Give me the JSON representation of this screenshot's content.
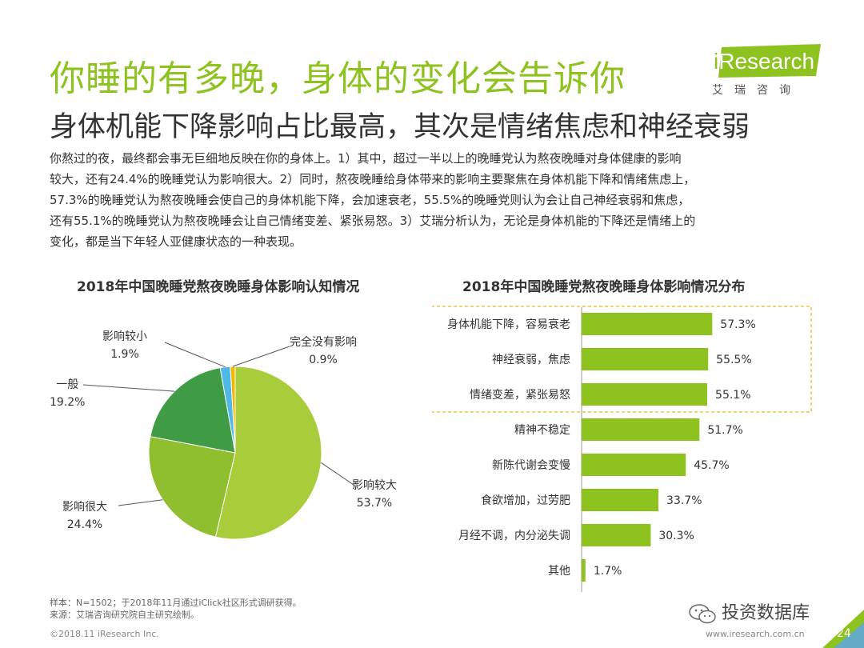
{
  "title": "你睡的有多晚，身体的变化会告诉你",
  "subtitle": "身体机能下降影响占比最高，其次是情绪焦虑和神经衰弱",
  "logo": {
    "i": "i",
    "name": "Research",
    "sub": "艾瑞咨询"
  },
  "body_lines": [
    "你熬过的夜，最终都会事无巨细地反映在你的身体上。1）其中，超过一半以上的晚睡党认为熬夜晚睡对身体健康的影响",
    "较大，还有24.4%的晚睡党认为影响很大。2）同时，熬夜晚睡给身体带来的影响主要聚焦在身体机能下降和情绪焦虑上，",
    "57.3%的晚睡党认为熬夜晚睡会使自己的身体机能下降，会加速衰老，55.5%的晚睡党则认为会让自己神经衰弱和焦虑，",
    "还有55.1%的晚睡党认为熬夜晚睡会让自己情绪变差、紧张易怒。3）艾瑞分析认为，无论是身体机能的下降还是情绪上的",
    "变化，都是当下年轻人亚健康状态的一种表现。"
  ],
  "colors": {
    "accent": "#8dc21f",
    "pie": [
      "#a9cd3a",
      "#8fbe2f",
      "#3f9c44",
      "#4fb8e6",
      "#f2b800"
    ],
    "highlight": "#e8c547"
  },
  "chart_data": [
    {
      "type": "pie",
      "title": "2018年中国晚睡党熬夜晚睡身体影响认知情况",
      "slices": [
        {
          "label": "影响较大",
          "value": 53.7,
          "display": "53.7%"
        },
        {
          "label": "影响很大",
          "value": 24.4,
          "display": "24.4%"
        },
        {
          "label": "一般",
          "value": 19.2,
          "display": "19.2%"
        },
        {
          "label": "影响较小",
          "value": 1.9,
          "display": "1.9%"
        },
        {
          "label": "完全没有影响",
          "value": 0.9,
          "display": "0.9%"
        }
      ]
    },
    {
      "type": "bar",
      "orientation": "horizontal",
      "title": "2018年中国晚睡党熬夜晚睡身体影响情况分布",
      "categories": [
        "身体机能下降，容易衰老",
        "神经衰弱，焦虑",
        "情绪变差，紧张易怒",
        "精神不稳定",
        "新陈代谢会变慢",
        "食欲增加，过劳肥",
        "月经不调，内分泌失调",
        "其他"
      ],
      "values": [
        57.3,
        55.5,
        55.1,
        51.7,
        45.7,
        33.7,
        30.3,
        1.7
      ],
      "value_labels": [
        "57.3%",
        "55.5%",
        "55.1%",
        "51.7%",
        "45.7%",
        "33.7%",
        "30.3%",
        "1.7%"
      ],
      "highlighted": [
        0,
        1,
        2
      ],
      "xlim": [
        0,
        100
      ]
    }
  ],
  "footnotes": [
    "样本：N=1502；于2018年11月通过iClick社区形式调研获得。",
    "来源：艾瑞咨询研究院自主研究绘制。"
  ],
  "footer_left": "©2018.11 iResearch Inc.",
  "footer_right": "www.iresearch.com.cn",
  "watermark": "投资数据库",
  "page_number": "24"
}
